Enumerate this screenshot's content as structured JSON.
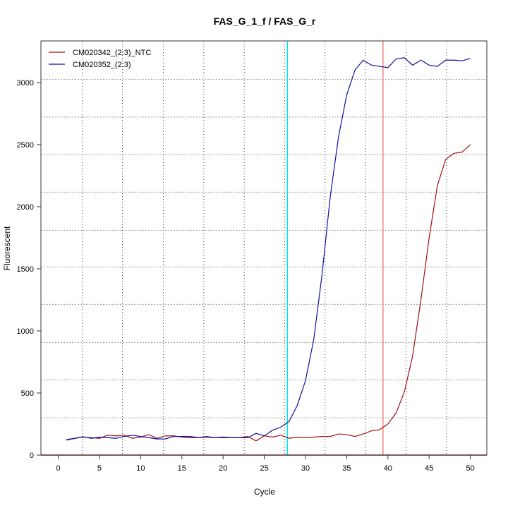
{
  "chart_data": {
    "type": "line",
    "title": "FAS_G_1_f / FAS_G_r",
    "xlabel": "Cycle",
    "ylabel": "Fluorescent",
    "xlim": [
      -2.1,
      52.0
    ],
    "ylim": [
      0,
      3335
    ],
    "xticks": [
      0,
      5,
      10,
      15,
      20,
      25,
      30,
      35,
      40,
      45,
      50
    ],
    "yticks": [
      0,
      500,
      1000,
      1500,
      2000,
      2500,
      3000
    ],
    "grid": true,
    "grid_x": [
      2.92,
      7.79,
      12.76,
      17.66,
      22.57,
      27.47,
      32.37,
      37.27,
      42.21,
      47.12
    ],
    "grid_y": [
      300,
      606,
      907,
      1214,
      1515,
      1810,
      2117,
      2418,
      2722,
      3025
    ],
    "legend_position": "top-left",
    "thresholds": [
      {
        "cycle": 27.8,
        "color": "#00e5ee"
      },
      {
        "cycle": 39.4,
        "color": "#f08080"
      }
    ],
    "x": [
      1,
      2,
      3,
      4,
      5,
      6,
      7,
      8,
      9,
      10,
      11,
      12,
      13,
      14,
      15,
      16,
      17,
      18,
      19,
      20,
      21,
      22,
      23,
      24,
      25,
      26,
      27,
      28,
      29,
      30,
      31,
      32,
      33,
      34,
      35,
      36,
      37,
      38,
      39,
      40,
      41,
      42,
      43,
      44,
      45,
      46,
      47,
      48,
      49,
      50
    ],
    "series": [
      {
        "name": "CM020342_(2:3)_NTC",
        "color": "#a01010",
        "values": [
          120,
          135,
          145,
          140,
          135,
          160,
          155,
          160,
          135,
          145,
          165,
          135,
          155,
          155,
          145,
          140,
          140,
          150,
          140,
          140,
          140,
          140,
          150,
          115,
          155,
          145,
          160,
          135,
          145,
          140,
          145,
          150,
          150,
          170,
          165,
          150,
          170,
          195,
          205,
          250,
          340,
          510,
          800,
          1250,
          1750,
          2170,
          2380,
          2430,
          2440,
          2500
        ]
      },
      {
        "name": "CM020352_(2:3)",
        "color": "#1010a0",
        "values": [
          125,
          135,
          148,
          135,
          145,
          140,
          135,
          150,
          160,
          150,
          140,
          130,
          130,
          150,
          150,
          150,
          140,
          145,
          140,
          145,
          140,
          140,
          140,
          175,
          155,
          200,
          225,
          270,
          400,
          600,
          930,
          1450,
          2080,
          2560,
          2900,
          3100,
          3180,
          3140,
          3130,
          3120,
          3190,
          3200,
          3140,
          3180,
          3140,
          3130,
          3180,
          3180,
          3175,
          3195
        ]
      }
    ]
  }
}
